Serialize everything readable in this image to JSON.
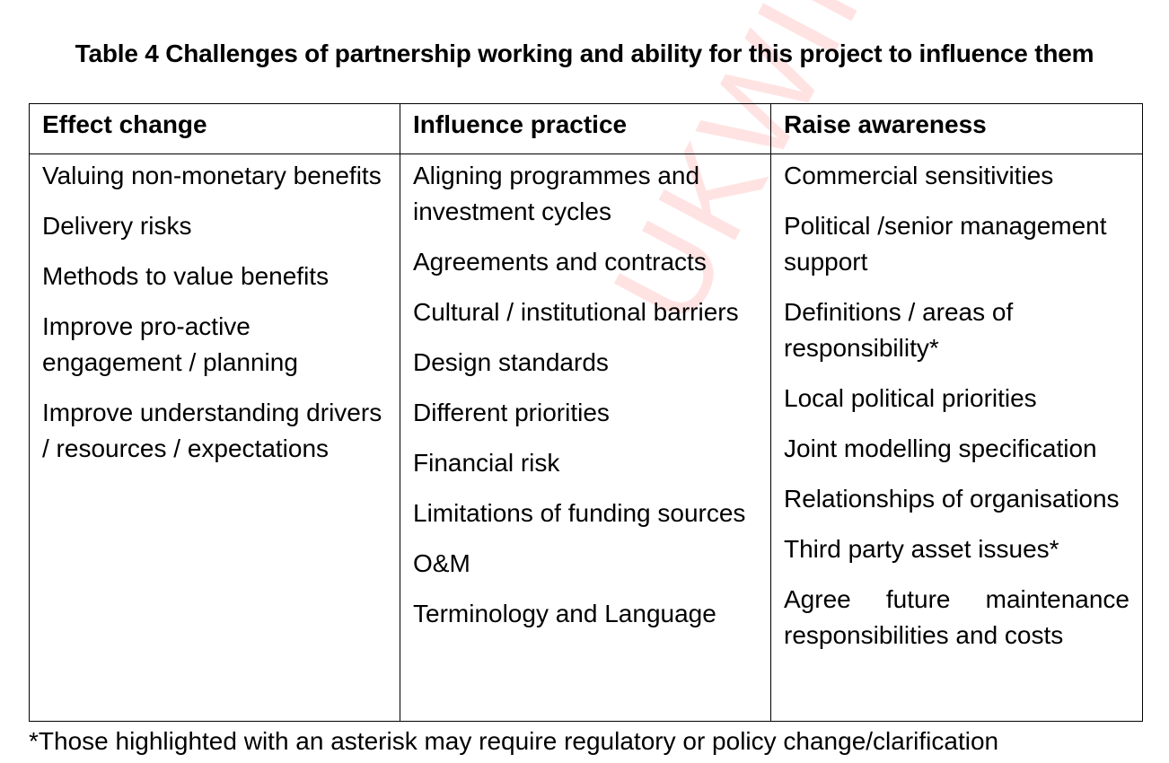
{
  "watermark": "UKWIR",
  "caption": "Table 4  Challenges of partnership working and ability for this project to influence them",
  "table": {
    "headers": [
      "Effect change",
      "Influence practice",
      "Raise awareness"
    ],
    "effect_change": [
      "Valuing non-monetary benefits",
      "Delivery risks",
      "Methods to value benefits",
      "Improve pro-active engagement / planning",
      "Improve understanding drivers / resources / expectations"
    ],
    "influence_practice": [
      "Aligning programmes and investment cycles",
      "Agreements and contracts",
      "Cultural / institutional barriers",
      "Design standards",
      "Different priorities",
      "Financial risk",
      "Limitations of funding sources",
      "O&M",
      "Terminology and Language"
    ],
    "raise_awareness": [
      "Commercial sensitivities",
      "Political /senior management support",
      "Definitions / areas of responsibility*",
      "Local political priorities",
      "Joint modelling specification",
      "Relationships of organisations",
      "Third party asset issues*",
      "Agree future maintenance responsibilities and costs"
    ]
  },
  "footnote": "*Those highlighted with an asterisk may require regulatory or policy change/clarification"
}
